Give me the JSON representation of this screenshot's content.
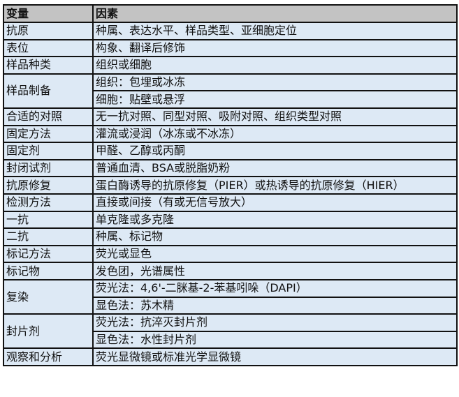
{
  "header": {
    "variable": "变量",
    "factor": "因素"
  },
  "rows": [
    {
      "variable": "抗原",
      "factors": [
        "种属、表达水平、样品类型、亚细胞定位"
      ]
    },
    {
      "variable": "表位",
      "factors": [
        "构象、翻译后修饰"
      ]
    },
    {
      "variable": "样品种类",
      "factors": [
        "组织或细胞"
      ]
    },
    {
      "variable": "样品制备",
      "factors": [
        "组织：包埋或冰冻",
        "细胞：贴壁或悬浮"
      ]
    },
    {
      "variable": "合适的对照",
      "factors": [
        "无一抗对照、同型对照、吸附对照、组织类型对照"
      ]
    },
    {
      "variable": "固定方法",
      "factors": [
        "灌流或浸润（冰冻或不冰冻）"
      ]
    },
    {
      "variable": "固定剂",
      "factors": [
        "甲醛、乙醇或丙酮"
      ]
    },
    {
      "variable": "封闭试剂",
      "factors": [
        "普通血清、BSA或脱脂奶粉"
      ]
    },
    {
      "variable": "抗原修复",
      "factors": [
        "蛋白酶诱导的抗原修复（PIER）或热诱导的抗原修复（HIER）"
      ]
    },
    {
      "variable": "检测方法",
      "factors": [
        "直接或间接（有或无信号放大）"
      ]
    },
    {
      "variable": "一抗",
      "factors": [
        "单克隆或多克隆"
      ]
    },
    {
      "variable": "二抗",
      "factors": [
        "种属、标记物"
      ]
    },
    {
      "variable": "标记方法",
      "factors": [
        "荧光或显色"
      ]
    },
    {
      "variable": "标记物",
      "factors": [
        "发色团，光谱属性"
      ]
    },
    {
      "variable": "复染",
      "factors": [
        "荧光法：4,6'-二脒基-2-苯基吲哚（DAPI）",
        "显色法：苏木精"
      ]
    },
    {
      "variable": "封片剂",
      "factors": [
        "荧光法：抗淬灭封片剂",
        "显色法：水性封片剂"
      ]
    },
    {
      "variable": "观察和分析",
      "factors": [
        "荧光显微镜或标准光学显微镜"
      ]
    }
  ]
}
